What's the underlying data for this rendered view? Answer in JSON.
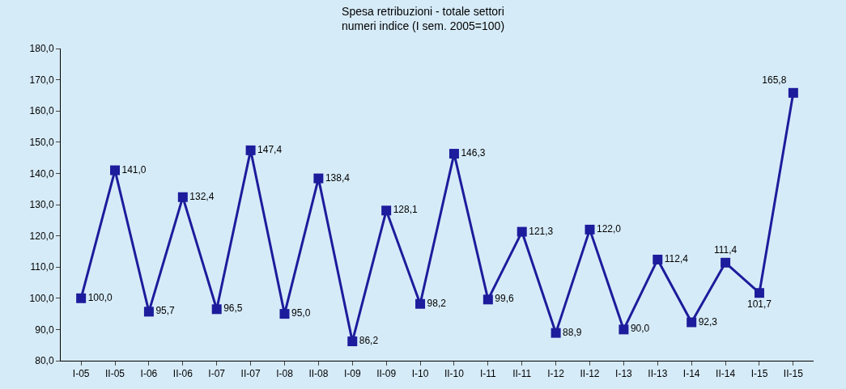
{
  "chart_data": {
    "type": "line",
    "title": "Spesa retribuzioni - totale settori",
    "subtitle": "numeri indice (I sem. 2005=100)",
    "categories": [
      "I-05",
      "II-05",
      "I-06",
      "II-06",
      "I-07",
      "II-07",
      "I-08",
      "II-08",
      "I-09",
      "II-09",
      "I-10",
      "II-10",
      "I-11",
      "II-11",
      "I-12",
      "II-12",
      "I-13",
      "II-13",
      "I-14",
      "II-14",
      "I-15",
      "II-15"
    ],
    "series": [
      {
        "color": "#1c1c9c",
        "values": [
          100.0,
          141.0,
          95.7,
          132.4,
          96.5,
          147.4,
          95.0,
          138.4,
          86.2,
          128.1,
          98.2,
          146.3,
          99.6,
          121.3,
          88.9,
          122.0,
          90.0,
          112.4,
          92.3,
          111.4,
          101.7,
          165.8
        ],
        "value_labels": [
          "100,0",
          "141,0",
          "95,7",
          "132,4",
          "96,5",
          "147,4",
          "95,0",
          "138,4",
          "86,2",
          "128,1",
          "98,2",
          "146,3",
          "99,6",
          "121,3",
          "88,9",
          "122,0",
          "90,0",
          "112,4",
          "92,3",
          "111,4",
          "101,7",
          "165,8"
        ]
      }
    ],
    "ylim": [
      80,
      180
    ],
    "yticks": [
      {
        "value": 80,
        "label": "80,0"
      },
      {
        "value": 90,
        "label": "90,0"
      },
      {
        "value": 100,
        "label": "100,0"
      },
      {
        "value": 110,
        "label": "110,0"
      },
      {
        "value": 120,
        "label": "120,0"
      },
      {
        "value": 130,
        "label": "130,0"
      },
      {
        "value": 140,
        "label": "140,0"
      },
      {
        "value": 150,
        "label": "150,0"
      },
      {
        "value": 160,
        "label": "160,0"
      },
      {
        "value": 170,
        "label": "170,0"
      },
      {
        "value": 180,
        "label": "180,0"
      }
    ],
    "marker": "square",
    "line_style": "solid",
    "grid": false,
    "legend": false
  }
}
